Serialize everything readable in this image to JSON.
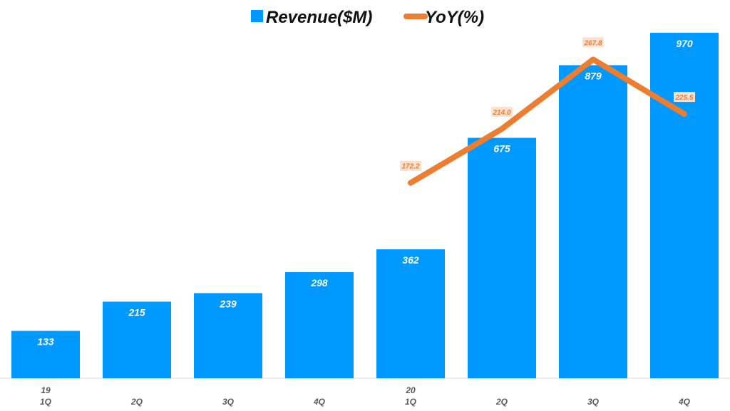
{
  "chart_data": {
    "type": "bar",
    "title": "",
    "categories": [
      "1Q",
      "2Q",
      "3Q",
      "4Q",
      "1Q",
      "2Q",
      "3Q",
      "4Q"
    ],
    "year_labels": [
      "19",
      "",
      "",
      "",
      "20",
      "",
      "",
      ""
    ],
    "series": [
      {
        "name": "Revenue($M)",
        "type": "bar",
        "color": "#0099ff",
        "values": [
          133,
          215,
          239,
          298,
          362,
          675,
          879,
          970
        ],
        "labels": [
          "133",
          "215",
          "239",
          "298",
          "362",
          "675",
          "879",
          "970"
        ]
      },
      {
        "name": "YoY(%)",
        "type": "line",
        "color": "#ed7d31",
        "values": [
          null,
          null,
          null,
          null,
          172.2,
          214.0,
          267.8,
          225.5
        ],
        "labels": [
          "",
          "",
          "",
          "",
          "172.2",
          "214.0",
          "267.8",
          "225.5"
        ]
      }
    ],
    "xlabel": "",
    "ylabel": "",
    "ylim": [
      0,
      1000
    ],
    "y2lim": [
      0,
      300
    ],
    "grid": false,
    "legend": "top-center"
  }
}
